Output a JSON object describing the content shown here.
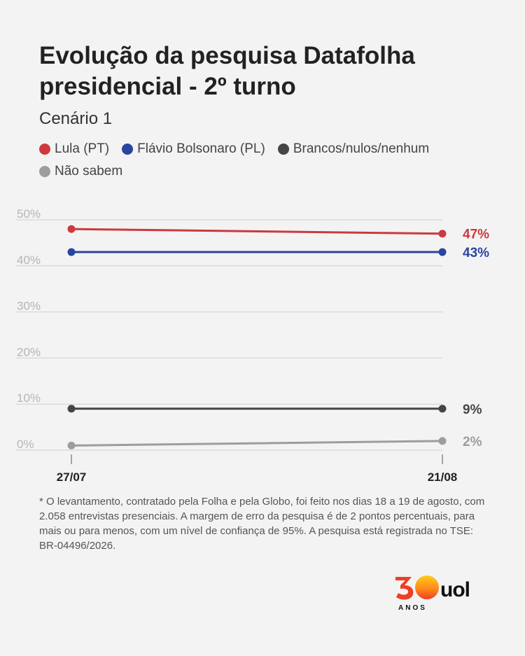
{
  "header": {
    "title": "Evolução da pesquisa Datafolha presidencial - 2º turno",
    "subtitle": "Cenário 1"
  },
  "legend": [
    {
      "label": "Lula (PT)",
      "color": "#cc3a3d"
    },
    {
      "label": "Flávio Bolsonaro (PL)",
      "color": "#2a44a0"
    },
    {
      "label": "Brancos/nulos/nenhum",
      "color": "#454545"
    },
    {
      "label": "Não sabem",
      "color": "#9d9d9d"
    }
  ],
  "chart_data": {
    "type": "line",
    "x": [
      "27/07",
      "21/08"
    ],
    "ylim": [
      0,
      50
    ],
    "yticks": [
      "0%",
      "10%",
      "20%",
      "30%",
      "40%",
      "50%"
    ],
    "grid": true,
    "legend_position": "top",
    "series": [
      {
        "name": "Lula (PT)",
        "values": [
          48,
          47
        ],
        "end_label": "47%",
        "color": "#cc3a3d"
      },
      {
        "name": "Flávio Bolsonaro (PL)",
        "values": [
          43,
          43
        ],
        "end_label": "43%",
        "color": "#2a44a0"
      },
      {
        "name": "Brancos/nulos/nenhum",
        "values": [
          9,
          9
        ],
        "end_label": "9%",
        "color": "#454545"
      },
      {
        "name": "Não sabem",
        "values": [
          1,
          2
        ],
        "end_label": "2%",
        "color": "#9d9d9d"
      }
    ]
  },
  "footnote": "* O levantamento, contratado pela Folha e pela Globo, foi feito nos dias 18 a 19 de agosto, com 2.058 entrevistas presenciais. A margem de erro da pesquisa é de 2 pontos percentuais, para mais ou para menos, com um nível de confiança de 95%. A pesquisa está registrada no TSE: BR-04496/2026.",
  "logo": {
    "number": "30",
    "caption": "ANOS",
    "brand": "uol"
  }
}
